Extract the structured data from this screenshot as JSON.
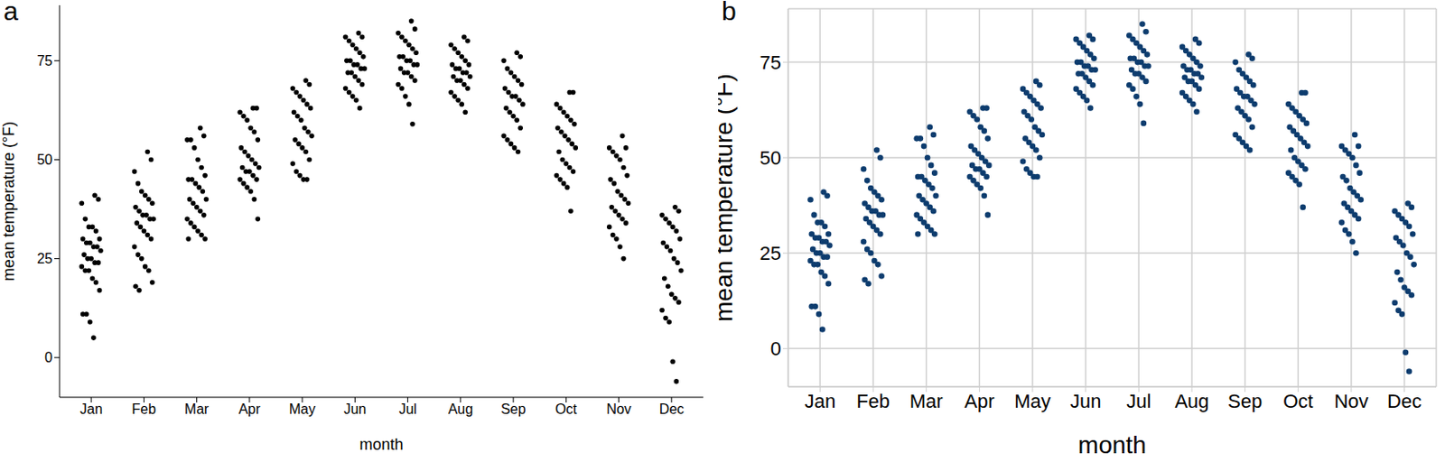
{
  "chart_data": [
    {
      "type": "scatter",
      "title": "a",
      "x_label": "month",
      "y_label": "mean temperature (°F)",
      "color": "#000000",
      "marker": "circle",
      "grid": false,
      "categories": [
        "Jan",
        "Feb",
        "Mar",
        "Apr",
        "May",
        "Jun",
        "Jul",
        "Aug",
        "Sep",
        "Oct",
        "Nov",
        "Dec"
      ],
      "values": [
        [
          41,
          40,
          39,
          35,
          33,
          33,
          32,
          30,
          30,
          29,
          29,
          28,
          28,
          27,
          26,
          25,
          25,
          24,
          24,
          23,
          22,
          22,
          20,
          19,
          17,
          11,
          11,
          9,
          5
        ],
        [
          52,
          50,
          47,
          44,
          42,
          41,
          40,
          39,
          38,
          37,
          36,
          36,
          35,
          35,
          34,
          33,
          32,
          31,
          30,
          28,
          26,
          25,
          23,
          22,
          19,
          18,
          17
        ],
        [
          58,
          56,
          55,
          55,
          53,
          50,
          48,
          46,
          45,
          45,
          44,
          43,
          42,
          40,
          40,
          39,
          38,
          37,
          36,
          35,
          34,
          33,
          32,
          31,
          30,
          30
        ],
        [
          63,
          63,
          62,
          61,
          60,
          58,
          57,
          55,
          53,
          52,
          51,
          50,
          49,
          48,
          48,
          47,
          47,
          46,
          45,
          45,
          44,
          43,
          42,
          40,
          35
        ],
        [
          70,
          69,
          68,
          67,
          66,
          65,
          64,
          63,
          62,
          61,
          60,
          58,
          57,
          56,
          55,
          54,
          53,
          52,
          50,
          49,
          47,
          46,
          45,
          45
        ],
        [
          82,
          81,
          81,
          80,
          79,
          78,
          77,
          76,
          75,
          75,
          74,
          74,
          73,
          73,
          72,
          72,
          71,
          70,
          69,
          68,
          67,
          66,
          65,
          63
        ],
        [
          85,
          83,
          82,
          81,
          80,
          79,
          78,
          77,
          76,
          76,
          75,
          75,
          74,
          74,
          73,
          72,
          72,
          71,
          70,
          69,
          68,
          66,
          64,
          59
        ],
        [
          81,
          80,
          79,
          78,
          77,
          76,
          75,
          74,
          74,
          73,
          73,
          72,
          72,
          71,
          71,
          70,
          70,
          69,
          68,
          67,
          66,
          65,
          64,
          62
        ],
        [
          77,
          76,
          75,
          73,
          72,
          71,
          70,
          69,
          68,
          67,
          66,
          66,
          65,
          64,
          63,
          62,
          61,
          60,
          58,
          56,
          55,
          54,
          53,
          52
        ],
        [
          67,
          67,
          64,
          63,
          62,
          61,
          60,
          59,
          58,
          57,
          56,
          55,
          54,
          53,
          52,
          50,
          49,
          48,
          47,
          46,
          45,
          44,
          43,
          37
        ],
        [
          56,
          53,
          53,
          52,
          51,
          50,
          48,
          46,
          45,
          44,
          42,
          41,
          40,
          39,
          38,
          37,
          36,
          35,
          34,
          33,
          31,
          30,
          28,
          25
        ],
        [
          38,
          37,
          36,
          35,
          34,
          33,
          32,
          30,
          29,
          28,
          27,
          25,
          24,
          22,
          20,
          18,
          16,
          15,
          14,
          12,
          10,
          9,
          -1,
          -6
        ]
      ],
      "ylim": [
        -10,
        89
      ],
      "yticks": [
        0,
        25,
        50,
        75
      ]
    },
    {
      "type": "scatter",
      "title": "b",
      "x_label": "month",
      "y_label": "mean temperature (°F)",
      "color": "#0d3c6e",
      "marker": "circle",
      "grid": true,
      "categories": [
        "Jan",
        "Feb",
        "Mar",
        "Apr",
        "May",
        "Jun",
        "Jul",
        "Aug",
        "Sep",
        "Oct",
        "Nov",
        "Dec"
      ],
      "values": [
        [
          41,
          40,
          39,
          35,
          33,
          33,
          32,
          30,
          30,
          29,
          29,
          28,
          28,
          27,
          26,
          25,
          25,
          24,
          24,
          23,
          22,
          22,
          20,
          19,
          17,
          11,
          11,
          9,
          5
        ],
        [
          52,
          50,
          47,
          44,
          42,
          41,
          40,
          39,
          38,
          37,
          36,
          36,
          35,
          35,
          34,
          33,
          32,
          31,
          30,
          28,
          26,
          25,
          23,
          22,
          19,
          18,
          17
        ],
        [
          58,
          56,
          55,
          55,
          53,
          50,
          48,
          46,
          45,
          45,
          44,
          43,
          42,
          40,
          40,
          39,
          38,
          37,
          36,
          35,
          34,
          33,
          32,
          31,
          30,
          30
        ],
        [
          63,
          63,
          62,
          61,
          60,
          58,
          57,
          55,
          53,
          52,
          51,
          50,
          49,
          48,
          48,
          47,
          47,
          46,
          45,
          45,
          44,
          43,
          42,
          40,
          35
        ],
        [
          70,
          69,
          68,
          67,
          66,
          65,
          64,
          63,
          62,
          61,
          60,
          58,
          57,
          56,
          55,
          54,
          53,
          52,
          50,
          49,
          47,
          46,
          45,
          45
        ],
        [
          82,
          81,
          81,
          80,
          79,
          78,
          77,
          76,
          75,
          75,
          74,
          74,
          73,
          73,
          72,
          72,
          71,
          70,
          69,
          68,
          67,
          66,
          65,
          63
        ],
        [
          85,
          83,
          82,
          81,
          80,
          79,
          78,
          77,
          76,
          76,
          75,
          75,
          74,
          74,
          73,
          72,
          72,
          71,
          70,
          69,
          68,
          66,
          64,
          59
        ],
        [
          81,
          80,
          79,
          78,
          77,
          76,
          75,
          74,
          74,
          73,
          73,
          72,
          72,
          71,
          71,
          70,
          70,
          69,
          68,
          67,
          66,
          65,
          64,
          62
        ],
        [
          77,
          76,
          75,
          73,
          72,
          71,
          70,
          69,
          68,
          67,
          66,
          66,
          65,
          64,
          63,
          62,
          61,
          60,
          58,
          56,
          55,
          54,
          53,
          52
        ],
        [
          67,
          67,
          64,
          63,
          62,
          61,
          60,
          59,
          58,
          57,
          56,
          55,
          54,
          53,
          52,
          50,
          49,
          48,
          47,
          46,
          45,
          44,
          43,
          37
        ],
        [
          56,
          53,
          53,
          52,
          51,
          50,
          48,
          46,
          45,
          44,
          42,
          41,
          40,
          39,
          38,
          37,
          36,
          35,
          34,
          33,
          31,
          30,
          28,
          25
        ],
        [
          38,
          37,
          36,
          35,
          34,
          33,
          32,
          30,
          29,
          28,
          27,
          25,
          24,
          22,
          20,
          18,
          16,
          15,
          14,
          12,
          10,
          9,
          -1,
          -6
        ]
      ],
      "ylim": [
        -10,
        89
      ],
      "yticks": [
        0,
        25,
        50,
        75
      ]
    }
  ]
}
